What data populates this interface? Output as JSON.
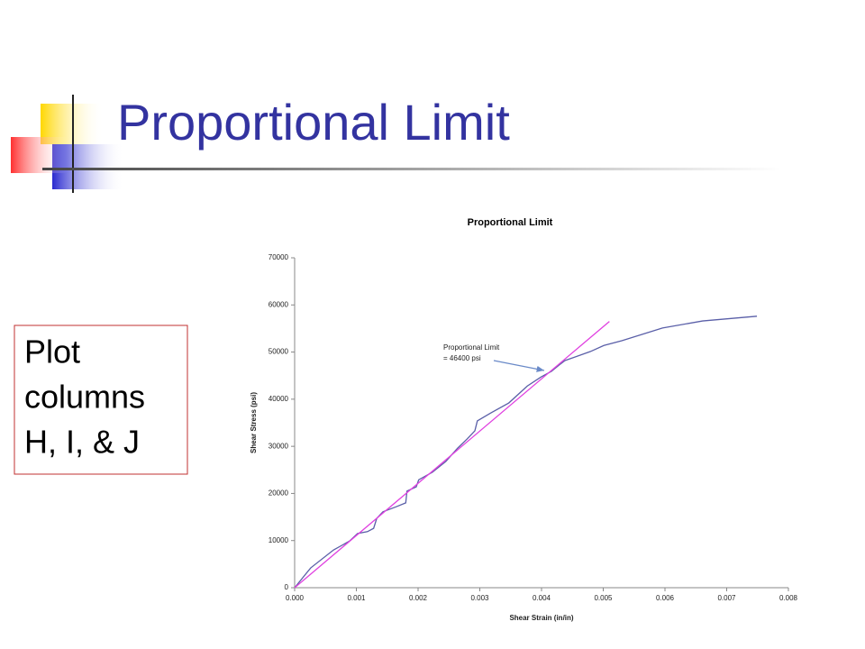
{
  "slide": {
    "title": "Proportional Limit",
    "note_lines": [
      "Plot",
      "columns",
      "H, I, & J"
    ]
  },
  "chart_data": {
    "type": "line",
    "title": "Proportional Limit",
    "x_label": "Shear Strain (in/in)",
    "y_label": "Shear Stress (psi)",
    "annotation": [
      "Proportional Limit",
      "= 46400 psi"
    ],
    "xlim": [
      0,
      0.008
    ],
    "ylim": [
      0,
      70000
    ],
    "xticks": [
      {
        "value": 0,
        "label": "0.000"
      },
      {
        "value": 0.001,
        "label": "0.001"
      },
      {
        "value": 0.002,
        "label": "0.002"
      },
      {
        "value": 0.003,
        "label": "0.003"
      },
      {
        "value": 0.004,
        "label": "0.004"
      },
      {
        "value": 0.005,
        "label": "0.005"
      },
      {
        "value": 0.006,
        "label": "0.006"
      },
      {
        "value": 0.007,
        "label": "0.007"
      },
      {
        "value": 0.008,
        "label": "0.008"
      }
    ],
    "yticks": [
      0,
      10000,
      20000,
      30000,
      40000,
      50000,
      60000,
      70000
    ],
    "grid": false,
    "series": [
      {
        "color": "#5a5fa8",
        "x": [
          0,
          0.00026,
          0.00063,
          0.00089,
          0.00102,
          0.00118,
          0.00128,
          0.00133,
          0.00143,
          0.00165,
          0.0018,
          0.00182,
          0.00197,
          0.00201,
          0.00223,
          0.00245,
          0.00264,
          0.00279,
          0.00292,
          0.00296,
          0.00318,
          0.00347,
          0.00377,
          0.00399,
          0.00416,
          0.00428,
          0.00438,
          0.00479,
          0.00501,
          0.0053,
          0.00596,
          0.00661,
          0.00749
        ],
        "values": [
          0,
          4200,
          8000,
          9900,
          11500,
          11900,
          12600,
          14700,
          16100,
          17200,
          18000,
          20500,
          21400,
          22900,
          24500,
          26800,
          29600,
          31500,
          33300,
          35400,
          37100,
          39200,
          42800,
          44700,
          45900,
          47200,
          48200,
          50100,
          51400,
          52400,
          55100,
          56600,
          57600
        ]
      },
      {
        "color": "#e040e0",
        "x": [
          0,
          0.0051
        ],
        "values": [
          0,
          56500
        ]
      }
    ]
  }
}
